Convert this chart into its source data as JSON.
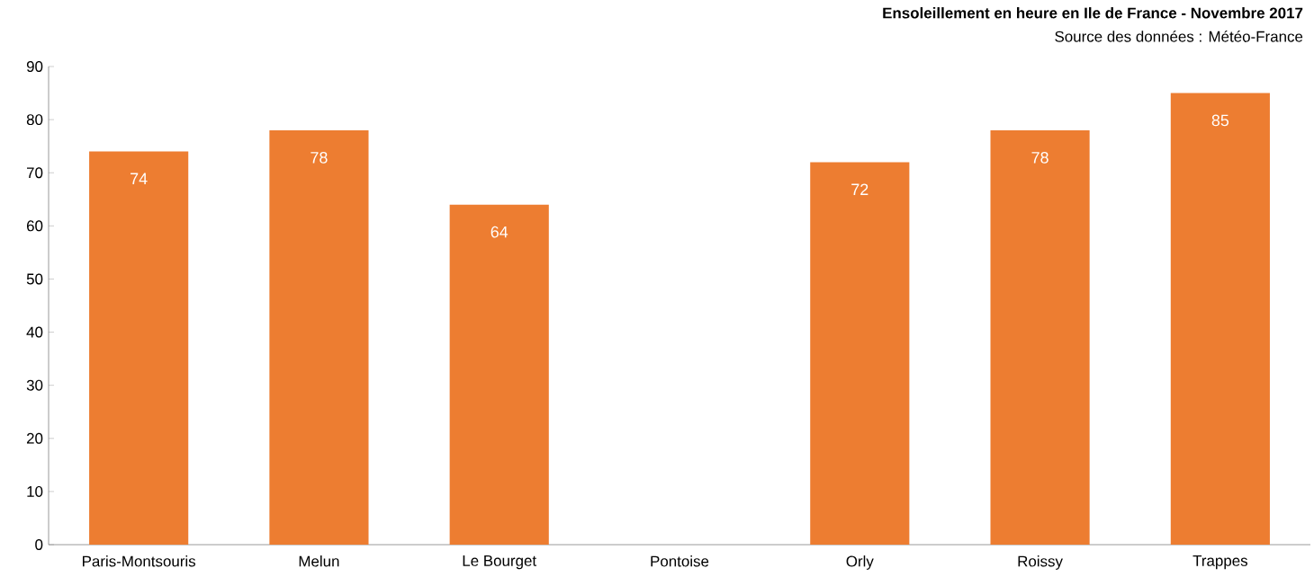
{
  "chart_data": {
    "type": "bar",
    "title": "Ensoleillement en heure en Ile de France - Novembre 2017",
    "subtitle": "Source des données : Météo-France",
    "categories": [
      "Paris-Montsouris",
      "Melun",
      "Le Bourget",
      "Pontoise",
      "Orly",
      "Roissy",
      "Trappes"
    ],
    "values": [
      74,
      78,
      64,
      null,
      72,
      78,
      85
    ],
    "color": "#ed7d31",
    "data_labels": true,
    "ylim": [
      0,
      90
    ],
    "yticks": [
      0,
      10,
      20,
      30,
      40,
      50,
      60,
      70,
      80,
      90
    ],
    "grid": false
  }
}
